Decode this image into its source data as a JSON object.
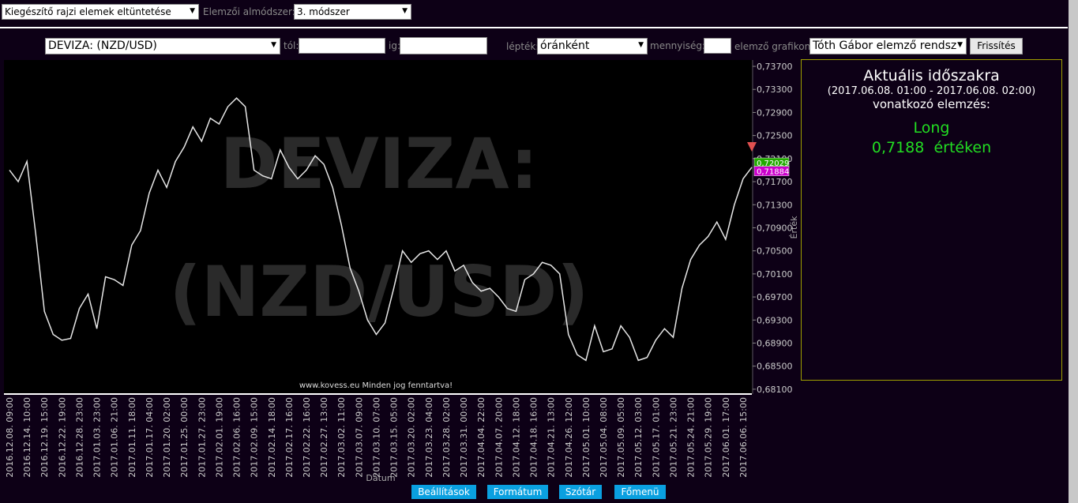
{
  "toolbar": {
    "overlay_select": "Kiegészítő rajzi elemek eltüntetése",
    "method_label": "Elemzői almódszer:",
    "method_select": "3. módszer",
    "instrument_select": "DEVIZA: (NZD/USD)",
    "from_label": "tól:",
    "to_label": "ig:",
    "scale_label": "lépték:",
    "scale_select": "óránként",
    "amount_label": "mennyiség:",
    "analyst_label": "elemző grafikon:",
    "analyst_select": "Tóth Gábor elemző rendsz",
    "refresh_button": "Frissítés"
  },
  "chart_data": {
    "type": "line",
    "watermark": [
      "DEVIZA:",
      "(NZD/USD)"
    ],
    "copyright": "www.kovess.eu Minden jog fenntartva!",
    "x_label": "Dátum",
    "y_label": "Érték",
    "color": "#e6e6e6",
    "grid": false,
    "categories": [
      "2016.12.08. 09:00",
      null,
      "2016.12.14. 10:00",
      null,
      "2016.12.19. 15:00",
      null,
      "2016.12.22. 19:00",
      null,
      "2016.12.28. 23:00",
      null,
      "2017.01.03. 23:00",
      null,
      "2017.01.06. 21:00",
      null,
      "2017.01.11. 18:00",
      null,
      "2017.01.17. 04:00",
      null,
      "2017.01.20. 02:00",
      null,
      "2017.01.25. 00:00",
      null,
      "2017.01.27. 23:00",
      null,
      "2017.02.01. 19:00",
      null,
      "2017.02.06. 16:00",
      null,
      "2017.02.09. 15:00",
      null,
      "2017.02.14. 18:00",
      null,
      "2017.02.17. 16:00",
      null,
      "2017.02.22. 16:00",
      null,
      "2017.02.27. 13:00",
      null,
      "2017.03.02. 11:00",
      null,
      "2017.03.07. 09:00",
      null,
      "2017.03.10. 07:00",
      null,
      "2017.03.15. 05:00",
      null,
      "2017.03.20. 02:00",
      null,
      "2017.03.23. 04:00",
      null,
      "2017.03.28. 02:00",
      null,
      "2017.03.31. 00:00",
      null,
      "2017.04.04. 22:00",
      null,
      "2017.04.07. 20:00",
      null,
      "2017.04.12. 18:00",
      null,
      "2017.04.18. 16:00",
      null,
      "2017.04.21. 13:00",
      null,
      "2017.04.26. 12:00",
      null,
      "2017.05.01. 10:00",
      null,
      "2017.05.04. 08:00",
      null,
      "2017.05.09. 05:00",
      null,
      "2017.05.12. 03:00",
      null,
      "2017.05.17. 01:00",
      null,
      "2017.05.21. 23:00",
      null,
      "2017.05.24. 21:00",
      null,
      "2017.05.29. 19:00",
      null,
      "2017.06.01. 17:00",
      null,
      "2017.06.06. 15:00",
      null
    ],
    "values": [
      0.719,
      0.717,
      0.7205,
      0.708,
      0.6945,
      0.6905,
      0.6895,
      0.6898,
      0.695,
      0.6975,
      0.6915,
      0.7005,
      0.7,
      0.699,
      0.706,
      0.7085,
      0.715,
      0.719,
      0.716,
      0.7205,
      0.723,
      0.7265,
      0.724,
      0.728,
      0.727,
      0.73,
      0.7315,
      0.73,
      0.719,
      0.718,
      0.7175,
      0.7225,
      0.7195,
      0.7175,
      0.719,
      0.7215,
      0.72,
      0.716,
      0.7095,
      0.702,
      0.698,
      0.693,
      0.6905,
      0.6925,
      0.6985,
      0.705,
      0.703,
      0.7045,
      0.705,
      0.7035,
      0.705,
      0.7015,
      0.7025,
      0.6995,
      0.698,
      0.6985,
      0.697,
      0.695,
      0.6945,
      0.7,
      0.701,
      0.703,
      0.7025,
      0.701,
      0.6905,
      0.687,
      0.686,
      0.692,
      0.6875,
      0.688,
      0.692,
      0.69,
      0.686,
      0.6865,
      0.6895,
      0.6915,
      0.69,
      0.6985,
      0.7035,
      0.706,
      0.7075,
      0.71,
      0.707,
      0.713,
      0.7175,
      0.7195
    ],
    "ylim": [
      0.6803,
      0.7381
    ],
    "yticks": [
      {
        "value": 0.681,
        "label": "0,68100"
      },
      {
        "value": 0.685,
        "label": "0,68500"
      },
      {
        "value": 0.689,
        "label": "0,68900"
      },
      {
        "value": 0.693,
        "label": "0,69300"
      },
      {
        "value": 0.697,
        "label": "0,69700"
      },
      {
        "value": 0.701,
        "label": "0,70100"
      },
      {
        "value": 0.705,
        "label": "0,70500"
      },
      {
        "value": 0.709,
        "label": "0,70900"
      },
      {
        "value": 0.713,
        "label": "0,71300"
      },
      {
        "value": 0.717,
        "label": "0,71700"
      },
      {
        "value": 0.721,
        "label": "0,72100"
      },
      {
        "value": 0.725,
        "label": "0,72500"
      },
      {
        "value": 0.729,
        "label": "0,72900"
      },
      {
        "value": 0.733,
        "label": "0,73300"
      },
      {
        "value": 0.737,
        "label": "0,73700"
      }
    ],
    "price_markers": [
      {
        "value": 0.72029,
        "label": "0,72029",
        "color": "#22aa00"
      },
      {
        "value": 0.71884,
        "label": "0,71884",
        "color": "#cc00cc"
      }
    ]
  },
  "panel": {
    "title": "Aktuális időszakra",
    "period": "(2017.06.08. 01:00 - 2017.06.08. 02:00)",
    "subtitle": "vonatkozó elemzés:",
    "signal": "Long",
    "price": "0,7188",
    "price_suffix": "értéken"
  },
  "footer": {
    "buttons": [
      "Beállítások",
      "Formátum",
      "Szótár",
      "Főmenü"
    ]
  }
}
